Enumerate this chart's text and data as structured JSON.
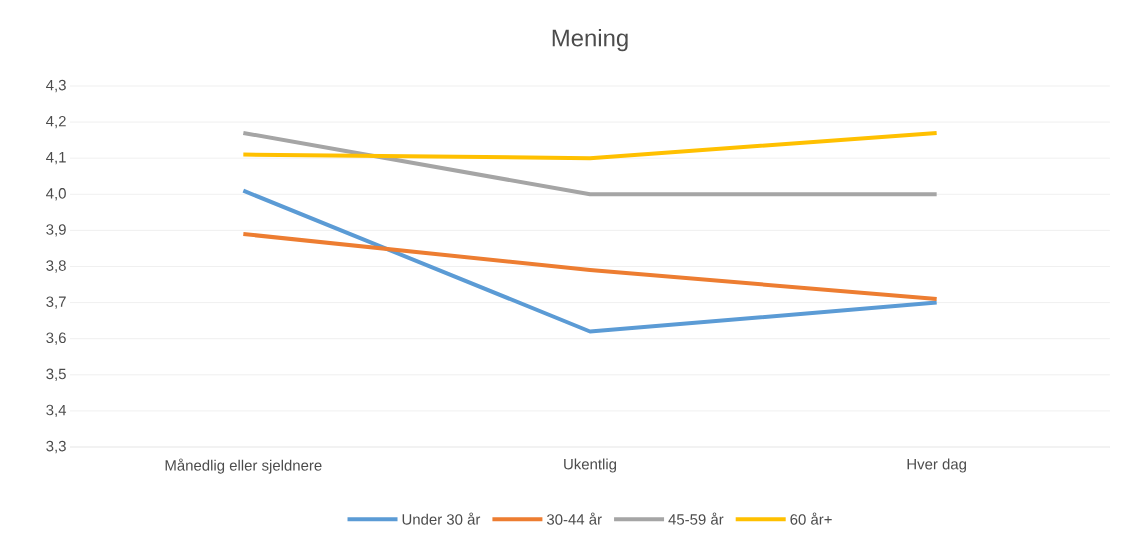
{
  "chart_data": {
    "type": "line",
    "title": "Mening",
    "categories": [
      "Månedlig eller sjeldnere",
      "Ukentlig",
      "Hver dag"
    ],
    "series": [
      {
        "name": "Under 30 år",
        "color": "#5b9bd5",
        "values": [
          4.01,
          3.62,
          3.7
        ]
      },
      {
        "name": "30-44 år",
        "color": "#ed7d31",
        "values": [
          3.89,
          3.79,
          3.71
        ]
      },
      {
        "name": "45-59 år",
        "color": "#a5a5a5",
        "values": [
          4.17,
          4.0,
          4.0
        ]
      },
      {
        "name": "60 år+",
        "color": "#ffc000",
        "values": [
          4.11,
          4.1,
          4.17
        ]
      }
    ],
    "ylim": [
      3.3,
      4.3
    ],
    "yticks": [
      {
        "value": 3.3,
        "label": "3,3"
      },
      {
        "value": 3.4,
        "label": "3,4"
      },
      {
        "value": 3.5,
        "label": "3,5"
      },
      {
        "value": 3.6,
        "label": "3,6"
      },
      {
        "value": 3.7,
        "label": "3,7"
      },
      {
        "value": 3.8,
        "label": "3,8"
      },
      {
        "value": 3.9,
        "label": "3,9"
      },
      {
        "value": 4.0,
        "label": "4,0"
      },
      {
        "value": 4.1,
        "label": "4,1"
      },
      {
        "value": 4.2,
        "label": "4,2"
      },
      {
        "value": 4.3,
        "label": "4,3"
      }
    ],
    "grid": "y",
    "legend": "bottom",
    "marker": "none",
    "line_style": "solid"
  }
}
